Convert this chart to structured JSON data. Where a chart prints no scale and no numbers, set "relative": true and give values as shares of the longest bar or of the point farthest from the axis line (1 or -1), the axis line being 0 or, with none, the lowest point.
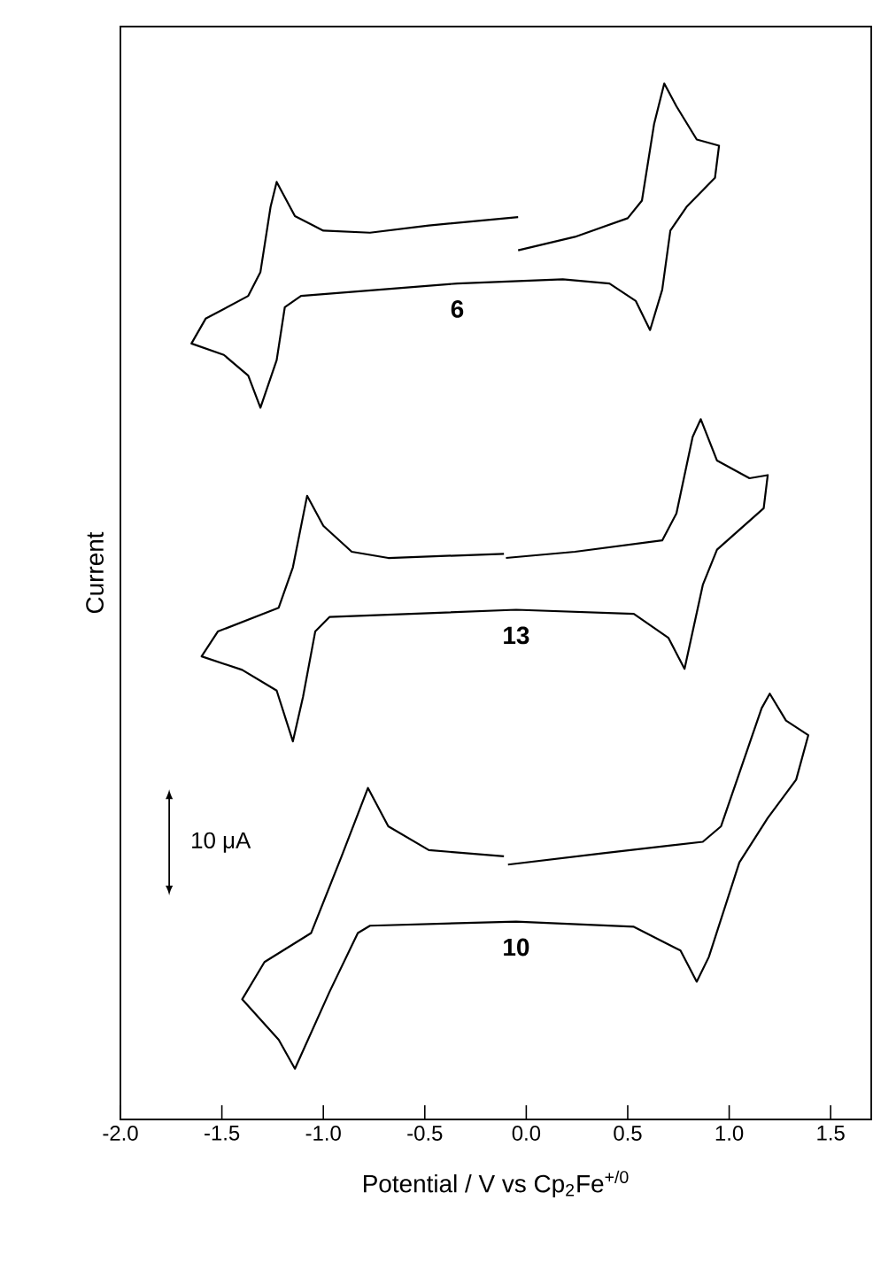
{
  "chart_data": {
    "type": "line",
    "relative": true,
    "xlabel": "Potential / V vs Cp$_{2}$Fe$^{+/0}$",
    "ylabel": "Current",
    "xlim": [
      -2.0,
      1.7
    ],
    "xticks": [
      {
        "value": -2.0,
        "label": "-2.0"
      },
      {
        "value": -1.5,
        "label": "-1.5"
      },
      {
        "value": -1.0,
        "label": "-1.0"
      },
      {
        "value": -0.5,
        "label": "-0.5"
      },
      {
        "value": 0.0,
        "label": "0.0"
      },
      {
        "value": 0.5,
        "label": "0.5"
      },
      {
        "value": 1.0,
        "label": "1.0"
      },
      {
        "value": 1.5,
        "label": "1.5"
      }
    ],
    "grid": false,
    "legend": false,
    "marker": "none",
    "line_style": "solid",
    "annotations": [
      "10 μA"
    ],
    "series": [
      {
        "name": "6",
        "color": "#000000",
        "x": [
          -0.04,
          0.24,
          0.5,
          0.57,
          0.63,
          0.68,
          0.74,
          0.84,
          0.95,
          0.93,
          0.79,
          0.71,
          0.67,
          0.61,
          0.54,
          0.41,
          0.18,
          -0.34,
          -1.11,
          -1.19,
          -1.23,
          -1.31,
          -1.37,
          -1.49,
          -1.65,
          -1.58,
          -1.37,
          -1.31,
          -1.26,
          -1.23,
          -1.14,
          -1.0,
          -0.77,
          -0.48,
          -0.04
        ],
        "values": [
          0.839,
          0.852,
          0.87,
          0.887,
          0.961,
          1.0,
          0.978,
          0.946,
          0.94,
          0.909,
          0.881,
          0.858,
          0.801,
          0.762,
          0.79,
          0.807,
          0.811,
          0.807,
          0.795,
          0.784,
          0.733,
          0.687,
          0.718,
          0.738,
          0.749,
          0.773,
          0.795,
          0.818,
          0.881,
          0.905,
          0.872,
          0.858,
          0.856,
          0.863,
          0.871
        ]
      },
      {
        "name": "13",
        "color": "#000000",
        "x": [
          -0.1,
          0.24,
          0.67,
          0.74,
          0.82,
          0.86,
          0.94,
          1.1,
          1.19,
          1.17,
          0.94,
          0.87,
          0.78,
          0.7,
          0.53,
          -0.05,
          -0.97,
          -1.04,
          -1.1,
          -1.15,
          -1.23,
          -1.4,
          -1.6,
          -1.52,
          -1.22,
          -1.15,
          -1.08,
          -1.0,
          -0.86,
          -0.68,
          -0.11
        ],
        "values": [
          0.542,
          0.548,
          0.559,
          0.585,
          0.659,
          0.676,
          0.636,
          0.619,
          0.622,
          0.59,
          0.55,
          0.516,
          0.435,
          0.465,
          0.488,
          0.492,
          0.485,
          0.471,
          0.408,
          0.365,
          0.414,
          0.434,
          0.447,
          0.471,
          0.494,
          0.533,
          0.602,
          0.573,
          0.548,
          0.542,
          0.546
        ]
      },
      {
        "name": "10",
        "color": "#000000",
        "x": [
          -0.09,
          0.38,
          0.87,
          0.96,
          1.16,
          1.2,
          1.28,
          1.39,
          1.33,
          1.19,
          1.05,
          0.9,
          0.84,
          0.76,
          0.53,
          -0.05,
          -0.77,
          -0.83,
          -0.97,
          -1.14,
          -1.22,
          -1.4,
          -1.29,
          -1.06,
          -0.91,
          -0.78,
          -0.68,
          -0.48,
          -0.11
        ],
        "values": [
          0.246,
          0.257,
          0.268,
          0.283,
          0.397,
          0.411,
          0.385,
          0.371,
          0.328,
          0.291,
          0.248,
          0.157,
          0.133,
          0.163,
          0.186,
          0.191,
          0.187,
          0.18,
          0.123,
          0.049,
          0.077,
          0.116,
          0.152,
          0.18,
          0.254,
          0.32,
          0.283,
          0.26,
          0.254
        ]
      }
    ]
  }
}
